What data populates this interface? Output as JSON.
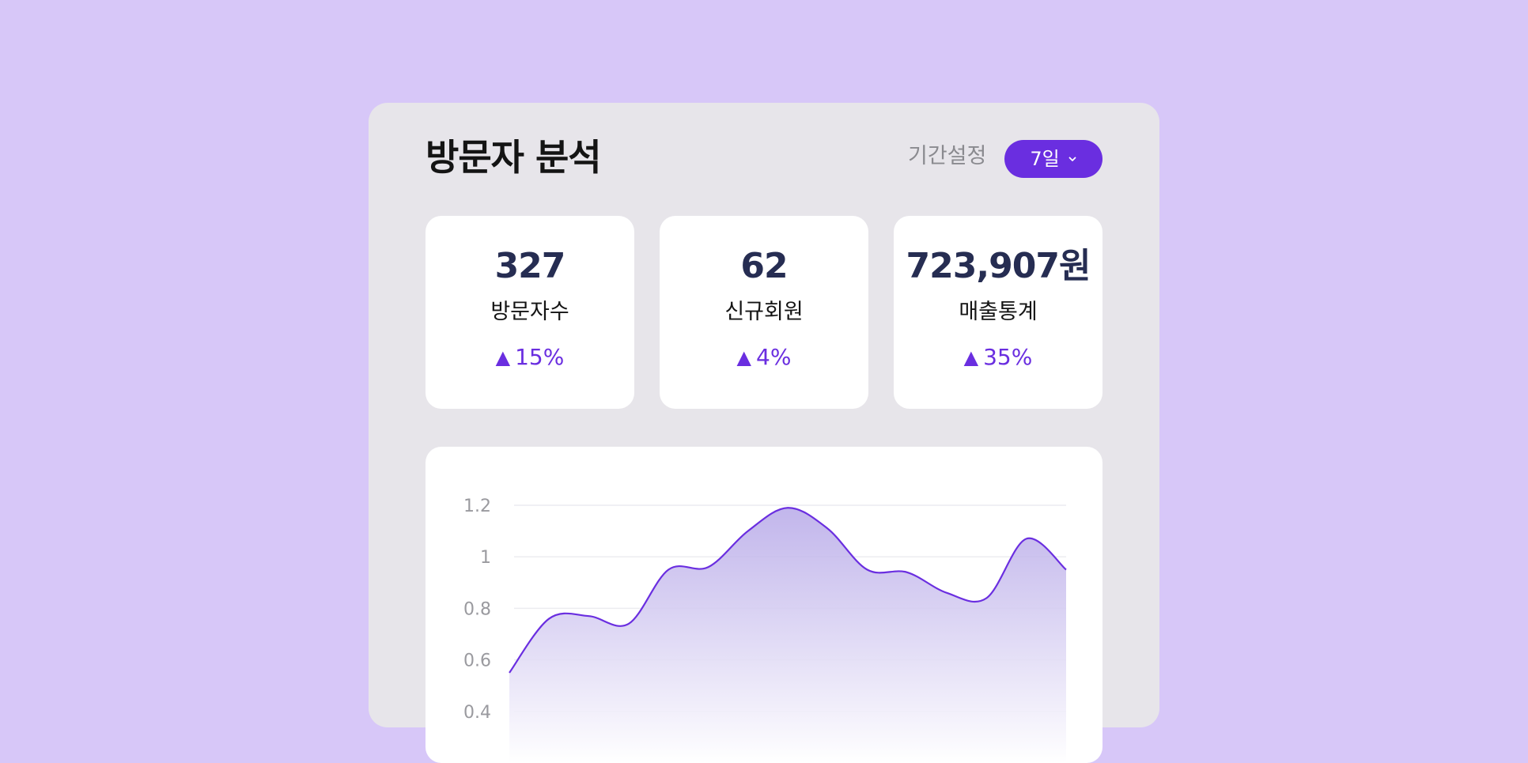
{
  "header": {
    "title": "방문자 분석",
    "period_label": "기간설정",
    "period_value": "7일",
    "period_icon": "chevron-down-icon"
  },
  "stats": [
    {
      "value": "327",
      "label": "방문자수",
      "change_icon": "triangle-up-icon",
      "change": "15%"
    },
    {
      "value": "62",
      "label": "신규회원",
      "change_icon": "triangle-up-icon",
      "change": "4%"
    },
    {
      "value": "723,907원",
      "label": "매출통계",
      "change_icon": "triangle-up-icon",
      "change": "35%"
    }
  ],
  "colors": {
    "background": "#d7c7f8",
    "panel": "#e7e5ea",
    "accent": "#6a2ee0",
    "stat_value": "#262d52",
    "axis_label": "#9a9a9f"
  },
  "chart_data": {
    "type": "area",
    "title": "",
    "xlabel": "",
    "ylabel": "",
    "y_ticks": [
      "1.2",
      "1",
      "0.8",
      "0.6",
      "0.4"
    ],
    "ylim": [
      0.2,
      1.2
    ],
    "grid": true,
    "x": [
      0,
      1,
      2,
      3,
      4,
      5,
      6,
      7,
      8,
      9,
      10,
      11,
      12,
      13,
      14
    ],
    "values": [
      0.55,
      0.76,
      0.77,
      0.74,
      0.95,
      0.96,
      1.1,
      1.19,
      1.11,
      0.95,
      0.94,
      0.86,
      0.84,
      1.07,
      0.95
    ]
  }
}
